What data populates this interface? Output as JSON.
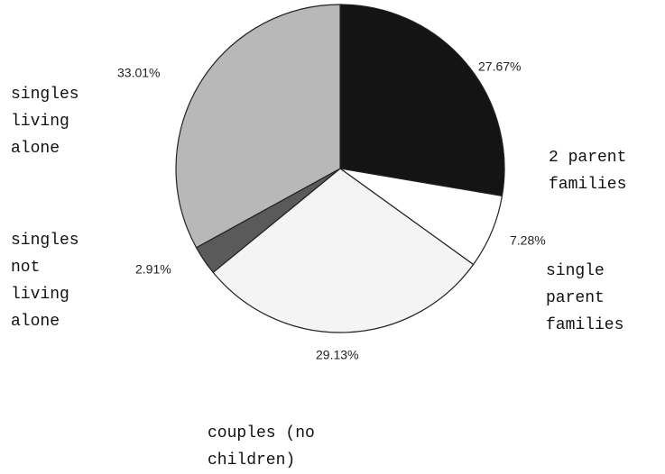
{
  "chart_data": {
    "type": "pie",
    "categories": [
      "2 parent families",
      "single parent families",
      "couples (no children)",
      "singles not living alone",
      "singles living alone"
    ],
    "values": [
      27.67,
      7.28,
      29.13,
      2.91,
      33.01
    ],
    "value_labels": [
      "27.67%",
      "7.28%",
      "29.13%",
      "2.91%",
      "33.01%"
    ],
    "colors": [
      "#141414",
      "#ffffff",
      "#f4f4f4",
      "#5a5a5a",
      "#b8b8b8"
    ]
  }
}
